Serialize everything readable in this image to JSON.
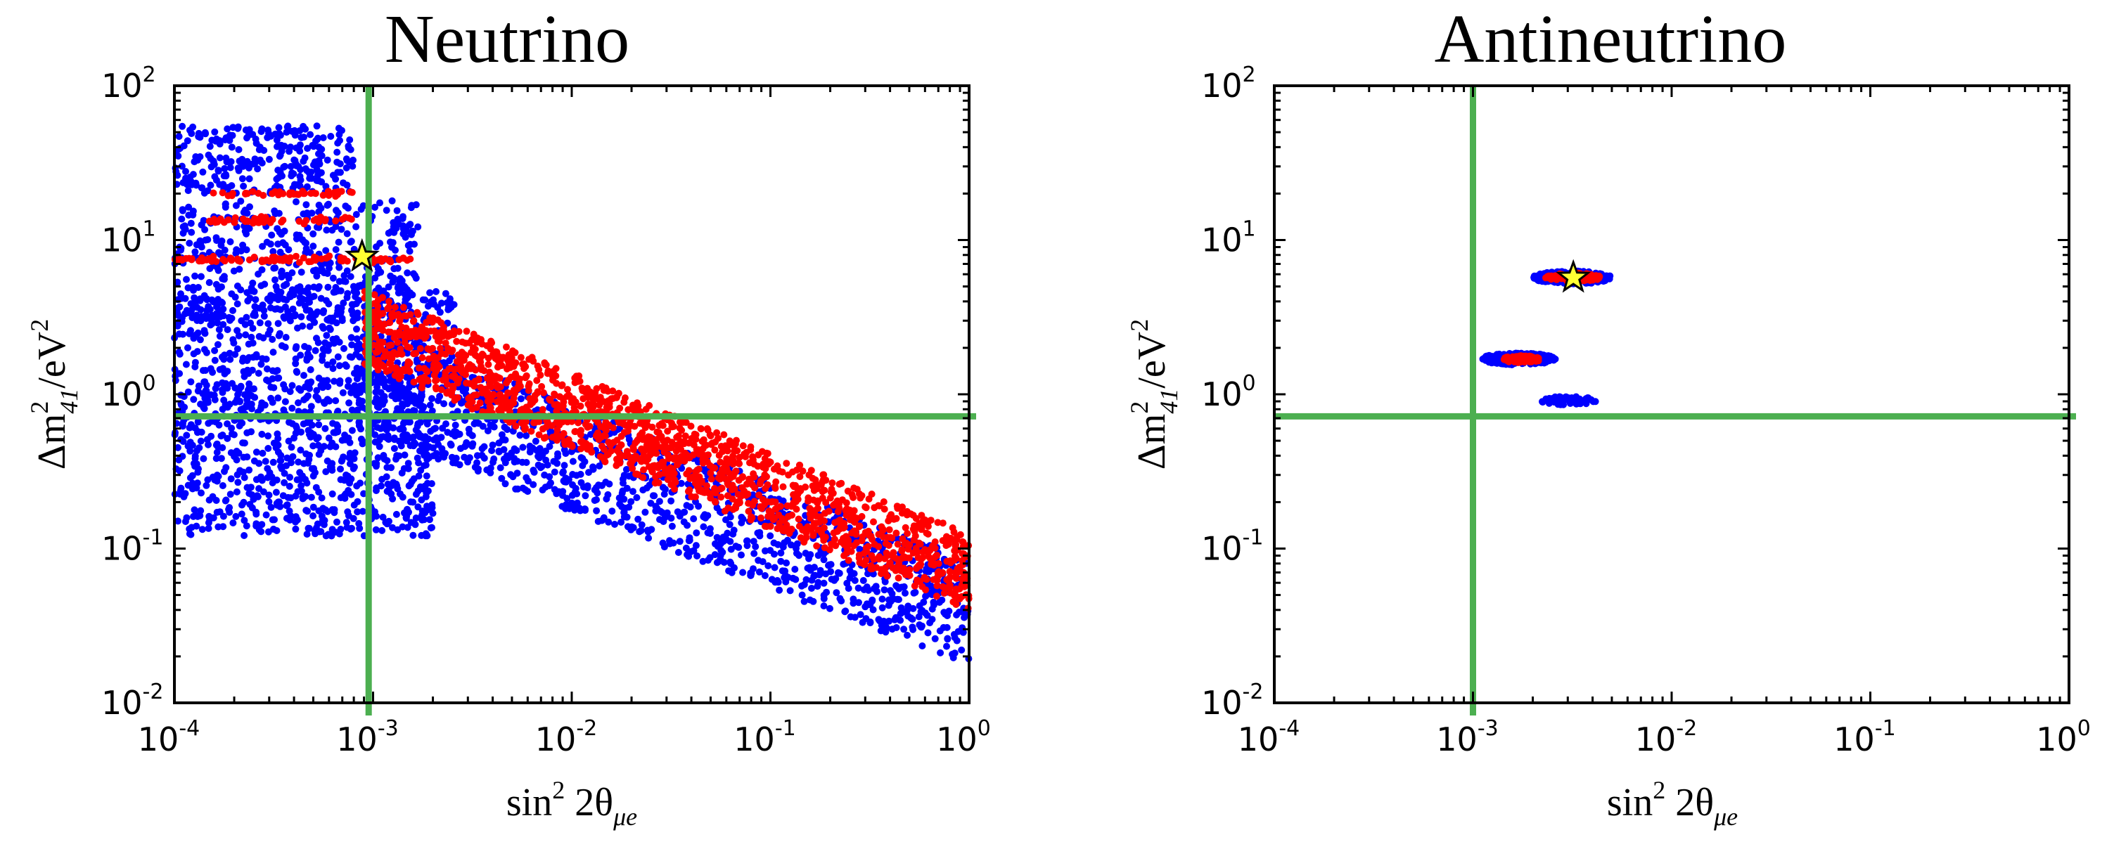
{
  "chart_data": [
    {
      "type": "scatter",
      "title": "Neutrino",
      "xlabel": "sin² 2θ_μe",
      "ylabel": "Δm²₄₁/eV²",
      "xscale": "log",
      "yscale": "log",
      "xlim": [
        0.0001,
        1
      ],
      "ylim": [
        0.01,
        100
      ],
      "x_ticks": [
        {
          "base": "10",
          "exp": "-4"
        },
        {
          "base": "10",
          "exp": "-3"
        },
        {
          "base": "10",
          "exp": "-2"
        },
        {
          "base": "10",
          "exp": "-1"
        },
        {
          "base": "10",
          "exp": "0"
        }
      ],
      "y_ticks": [
        {
          "base": "10",
          "exp": "-2"
        },
        {
          "base": "10",
          "exp": "-1"
        },
        {
          "base": "10",
          "exp": "0"
        },
        {
          "base": "10",
          "exp": "1"
        },
        {
          "base": "10",
          "exp": "2"
        }
      ],
      "series": [
        {
          "name": "blue region",
          "color": "#0000ff",
          "regions": [
            {
              "shape": "box",
              "x": [
                0.0001,
                0.0008
              ],
              "y": [
                20,
                55
              ],
              "n": 260
            },
            {
              "shape": "box",
              "x": [
                0.0001,
                0.0017
              ],
              "y": [
                3,
                18
              ],
              "n": 420
            },
            {
              "shape": "box",
              "x": [
                0.0001,
                0.0026
              ],
              "y": [
                1.2,
                5
              ],
              "n": 420
            },
            {
              "shape": "box",
              "x": [
                0.0001,
                0.002
              ],
              "y": [
                0.12,
                1.2
              ],
              "n": 750
            },
            {
              "shape": "band",
              "x": [
                0.0008,
                1
              ],
              "y_at_x1": 2.5,
              "slope": -0.5,
              "width": 1.25,
              "n": 1300
            }
          ]
        },
        {
          "name": "red region",
          "color": "#ff0000",
          "regions": [
            {
              "shape": "stripe",
              "x": [
                0.00015,
                0.0008
              ],
              "y": 20,
              "n": 40
            },
            {
              "shape": "stripe",
              "x": [
                0.00015,
                0.0009
              ],
              "y": 13.5,
              "n": 50
            },
            {
              "shape": "stripe",
              "x": [
                0.0001,
                0.0016
              ],
              "y": 7.5,
              "n": 90
            },
            {
              "shape": "stripe",
              "x": [
                0.0012,
                0.0026
              ],
              "y": 2.5,
              "n": 20
            },
            {
              "shape": "band",
              "x": [
                0.0009,
                1
              ],
              "y_at_x1": 4.0,
              "slope": -0.52,
              "width": 0.9,
              "n": 1500
            }
          ]
        },
        {
          "name": "green reference lines",
          "color": "#4caf50",
          "vertical_x": 0.00095,
          "horizontal_y": 0.72
        }
      ],
      "best_fit": {
        "x": 0.00088,
        "y": 7.8,
        "marker": "star",
        "color": "#ffff33"
      }
    },
    {
      "type": "scatter",
      "title": "Antineutrino",
      "xlabel": "sin² 2θ_μe",
      "ylabel": "Δm²₄₁/eV²",
      "xscale": "log",
      "yscale": "log",
      "xlim": [
        0.0001,
        1
      ],
      "ylim": [
        0.01,
        100
      ],
      "x_ticks": [
        {
          "base": "10",
          "exp": "-4"
        },
        {
          "base": "10",
          "exp": "-3"
        },
        {
          "base": "10",
          "exp": "-2"
        },
        {
          "base": "10",
          "exp": "-1"
        },
        {
          "base": "10",
          "exp": "0"
        }
      ],
      "y_ticks": [
        {
          "base": "10",
          "exp": "-2"
        },
        {
          "base": "10",
          "exp": "-1"
        },
        {
          "base": "10",
          "exp": "0"
        },
        {
          "base": "10",
          "exp": "1"
        },
        {
          "base": "10",
          "exp": "2"
        }
      ],
      "series": [
        {
          "name": "blue region",
          "color": "#0000ff",
          "regions": [
            {
              "shape": "ellipse",
              "x": [
                0.002,
                0.005
              ],
              "y": [
                5.2,
                6.3
              ],
              "n": 220
            },
            {
              "shape": "ellipse",
              "x": [
                0.0011,
                0.0026
              ],
              "y": [
                1.55,
                1.85
              ],
              "n": 200
            },
            {
              "shape": "ellipse",
              "x": [
                0.0022,
                0.0042
              ],
              "y": [
                0.85,
                0.97
              ],
              "n": 70
            }
          ]
        },
        {
          "name": "red region",
          "color": "#ff0000",
          "regions": [
            {
              "shape": "ellipse",
              "x": [
                0.0023,
                0.0045
              ],
              "y": [
                5.4,
                6.1
              ],
              "n": 120
            },
            {
              "shape": "ellipse",
              "x": [
                0.0014,
                0.0022
              ],
              "y": [
                1.6,
                1.78
              ],
              "n": 90
            }
          ]
        },
        {
          "name": "green reference lines",
          "color": "#4caf50",
          "vertical_x": 0.001,
          "horizontal_y": 0.72
        }
      ],
      "best_fit": {
        "x": 0.0032,
        "y": 5.7,
        "marker": "star",
        "color": "#ffff33"
      }
    }
  ]
}
